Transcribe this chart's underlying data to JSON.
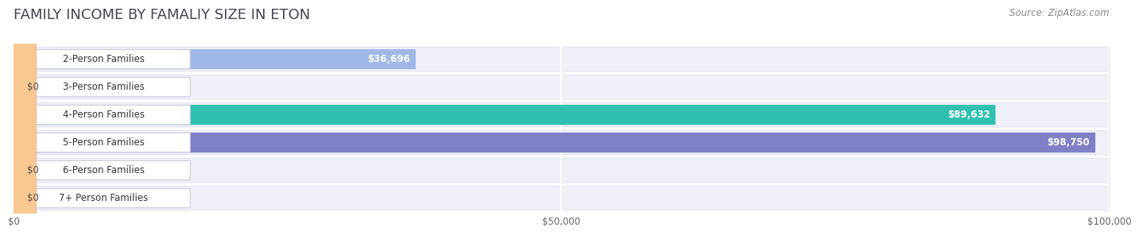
{
  "title": "FAMILY INCOME BY FAMALIY SIZE IN ETON",
  "source": "Source: ZipAtlas.com",
  "categories": [
    "2-Person Families",
    "3-Person Families",
    "4-Person Families",
    "5-Person Families",
    "6-Person Families",
    "7+ Person Families"
  ],
  "values": [
    36696,
    0,
    89632,
    98750,
    0,
    0
  ],
  "bar_colors": [
    "#a0b8e8",
    "#c0a0d8",
    "#30c0b0",
    "#8080c8",
    "#f898b8",
    "#f8c890"
  ],
  "bar_value_labels": [
    "$36,696",
    "$0",
    "$89,632",
    "$98,750",
    "$0",
    "$0"
  ],
  "xlim": [
    0,
    100000
  ],
  "xtick_values": [
    0,
    50000,
    100000
  ],
  "xtick_labels": [
    "$0",
    "$50,000",
    "$100,000"
  ],
  "background_color": "#ffffff",
  "row_bg_color": "#f0f0f8",
  "title_fontsize": 13,
  "source_fontsize": 8.5,
  "label_fontsize": 8.5,
  "value_fontsize": 8.5
}
